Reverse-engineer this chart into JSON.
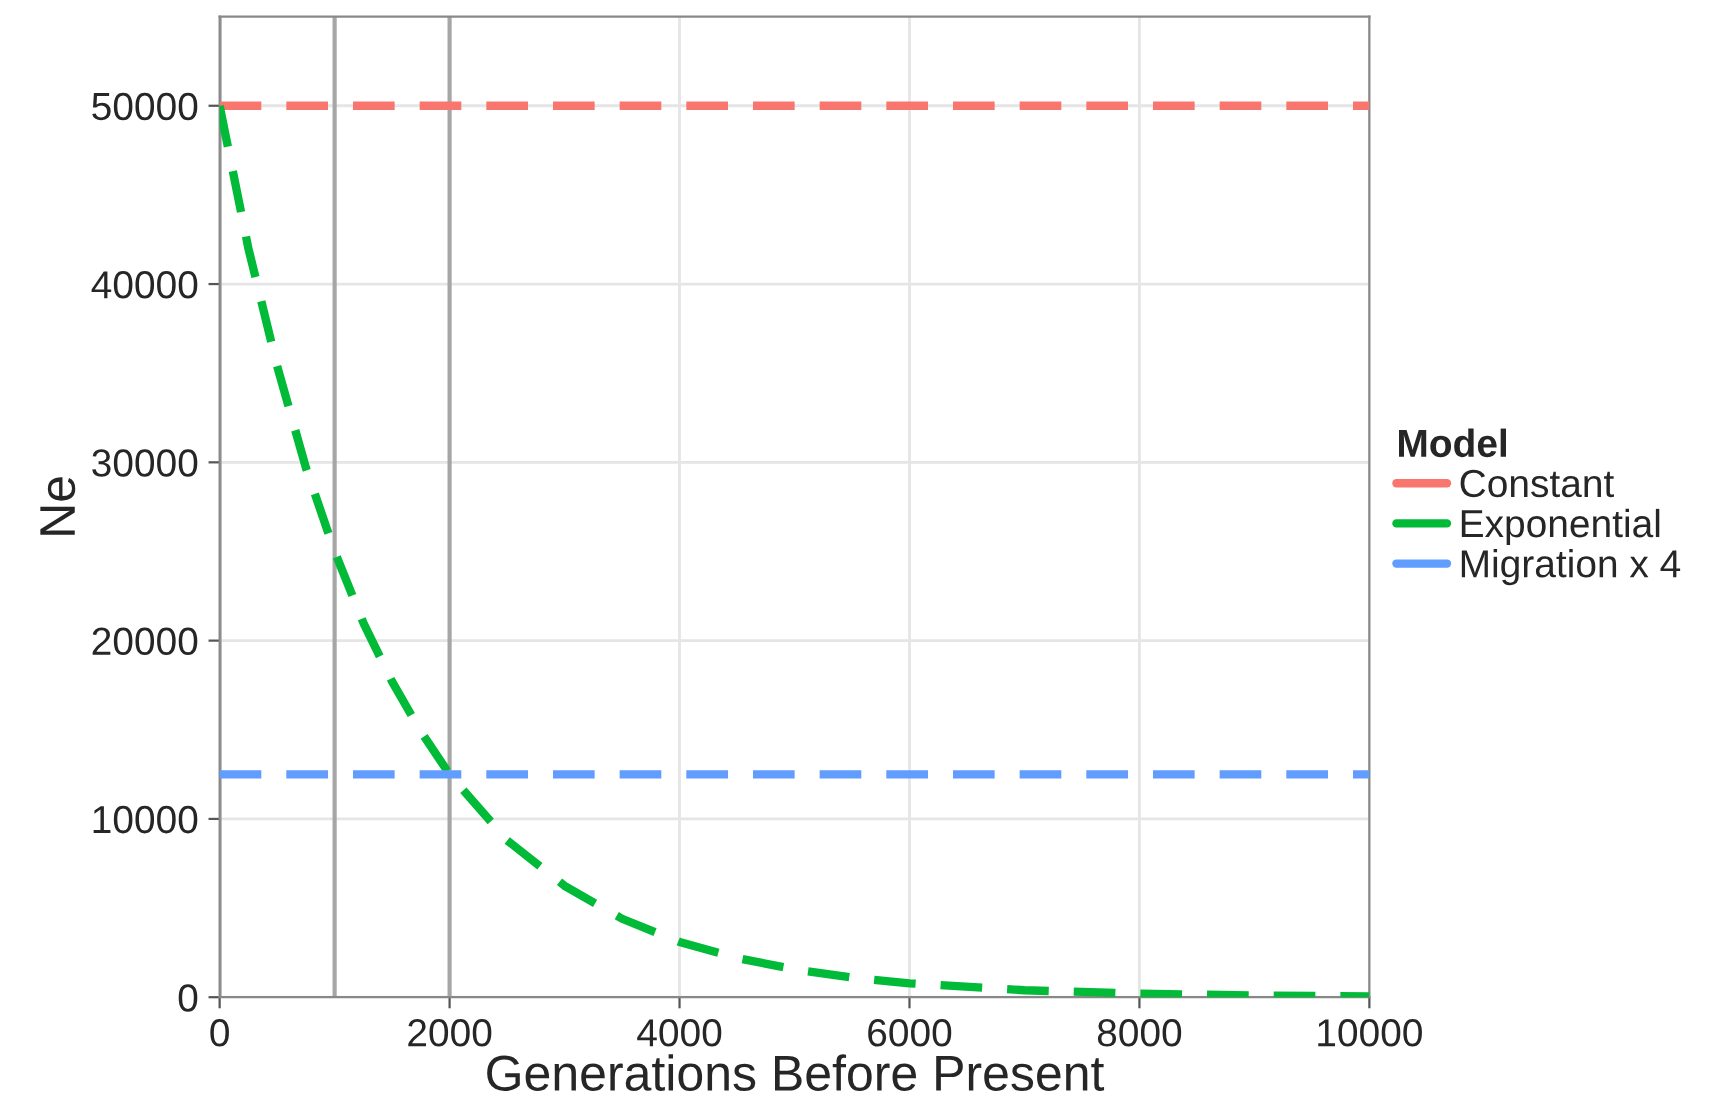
{
  "chart_data": {
    "type": "line",
    "xlabel": "Generations Before Present",
    "ylabel": "Ne",
    "legend_title": "Model",
    "legend": "right",
    "grid": true,
    "line_style": "dashed",
    "marker": "none",
    "xlim": [
      0,
      10000
    ],
    "xticks": [
      0,
      2000,
      4000,
      6000,
      8000,
      10000
    ],
    "ylim": [
      0,
      55000
    ],
    "yticks": [
      0,
      10000,
      20000,
      30000,
      40000,
      50000
    ],
    "series": [
      {
        "name": "Constant",
        "color": "#f8766d",
        "x": [
          0,
          10000
        ],
        "values": [
          50000,
          50000
        ]
      },
      {
        "name": "Exponential",
        "color": "#00ba38",
        "x": [
          0,
          250,
          500,
          750,
          1000,
          1250,
          1500,
          1750,
          2000,
          2500,
          3000,
          3500,
          4000,
          4500,
          5000,
          5500,
          6000,
          7000,
          8000,
          9000,
          10000
        ],
        "values": [
          50000,
          42000,
          35400,
          29700,
          25000,
          21000,
          17700,
          14900,
          12500,
          8800,
          6250,
          4400,
          3100,
          2200,
          1560,
          1100,
          780,
          390,
          200,
          100,
          50
        ]
      },
      {
        "name": "Migration x 4",
        "color": "#619cff",
        "x": [
          0,
          10000
        ],
        "values": [
          12500,
          12500
        ]
      }
    ],
    "ref_lines": [
      {
        "axis": "x",
        "value": 0,
        "color": "#a6a6a6",
        "line_style": "solid"
      },
      {
        "axis": "x",
        "value": 1000,
        "color": "#a6a6a6",
        "line_style": "solid"
      },
      {
        "axis": "x",
        "value": 2000,
        "color": "#a6a6a6",
        "line_style": "solid"
      }
    ]
  }
}
